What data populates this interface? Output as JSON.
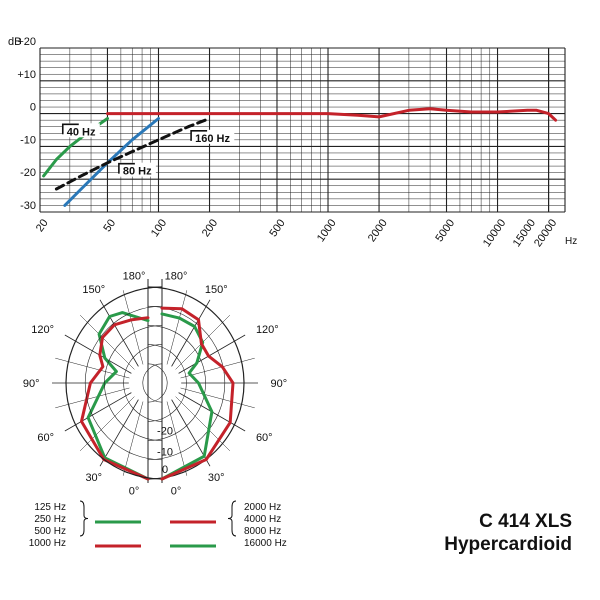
{
  "product": {
    "model": "C 414 XLS",
    "pattern": "Hypercardioid"
  },
  "colors": {
    "green": "#2a9a4a",
    "red": "#c4222a",
    "blue": "#2a78b8",
    "black": "#111111",
    "grid": "#222222"
  },
  "chart_data": [
    {
      "type": "line",
      "x_scale": "log",
      "xlim": [
        20,
        25000
      ],
      "ylim": [
        -30,
        20
      ],
      "grid": true,
      "ylabel": "dB",
      "xlabel": "Hz",
      "y_ticks": [
        {
          "value": 20,
          "label": "+20"
        },
        {
          "value": 10,
          "label": "+10"
        },
        {
          "value": 0,
          "label": "0"
        },
        {
          "value": -10,
          "label": "-10"
        },
        {
          "value": -20,
          "label": "-20"
        },
        {
          "value": -30,
          "label": "-30"
        }
      ],
      "x_ticks": [
        {
          "value": 20,
          "label": "20"
        },
        {
          "value": 50,
          "label": "50"
        },
        {
          "value": 100,
          "label": "100"
        },
        {
          "value": 200,
          "label": "200"
        },
        {
          "value": 500,
          "label": "500"
        },
        {
          "value": 1000,
          "label": "1000"
        },
        {
          "value": 2000,
          "label": "2000"
        },
        {
          "value": 5000,
          "label": "5000"
        },
        {
          "value": 10000,
          "label": "10000"
        },
        {
          "value": 15000,
          "label": "15000"
        },
        {
          "value": 20000,
          "label": "20000"
        }
      ],
      "series": [
        {
          "color": "red",
          "dash": false,
          "x": [
            50,
            100,
            200,
            500,
            1000,
            1500,
            2000,
            3000,
            4000,
            5000,
            7000,
            10000,
            15000,
            17000,
            20000,
            22000
          ],
          "y": [
            0,
            0,
            0,
            0,
            0,
            -0.5,
            -1,
            1,
            1.5,
            1,
            0.5,
            0.5,
            1,
            1,
            0,
            -2
          ]
        },
        {
          "color": "green",
          "dash": false,
          "x": [
            21,
            25,
            30,
            40,
            50
          ],
          "y": [
            -19,
            -14,
            -10,
            -5,
            -1.5
          ]
        },
        {
          "color": "blue",
          "dash": false,
          "x": [
            28,
            35,
            50,
            70,
            100
          ],
          "y": [
            -28,
            -23,
            -15,
            -8,
            -1.5
          ]
        },
        {
          "color": "black",
          "dash": true,
          "x": [
            25,
            35,
            50,
            100,
            150,
            200
          ],
          "y": [
            -23,
            -19,
            -15,
            -8,
            -4,
            -1.5
          ]
        }
      ],
      "annotations": [
        {
          "text": "40 Hz",
          "x": 28,
          "y": -6
        },
        {
          "text": "80 Hz",
          "x": 60,
          "y": -18
        },
        {
          "text": "160 Hz",
          "x": 160,
          "y": -8
        }
      ]
    },
    {
      "type": "polar",
      "r_ticks": [
        {
          "value": -20,
          "label": "-20"
        },
        {
          "value": -10,
          "label": "-10"
        },
        {
          "value": 0,
          "label": "0"
        }
      ],
      "angle_labels": [
        "0°",
        "30°",
        "60°",
        "90°",
        "120°",
        "150°",
        "180°"
      ],
      "left_series": [
        {
          "color": "green",
          "angle": [
            0,
            30,
            60,
            90,
            110,
            120,
            135,
            150,
            160,
            180
          ],
          "r": [
            1.0,
            0.9,
            0.72,
            0.45,
            0.35,
            0.52,
            0.72,
            0.8,
            0.78,
            0.65
          ]
        },
        {
          "color": "red",
          "angle": [
            0,
            30,
            60,
            90,
            110,
            120,
            135,
            150,
            165,
            180
          ],
          "r": [
            1.0,
            0.92,
            0.8,
            0.6,
            0.5,
            0.58,
            0.67,
            0.7,
            0.68,
            0.68
          ]
        }
      ],
      "right_series": [
        {
          "color": "green",
          "angle": [
            0,
            30,
            60,
            90,
            110,
            120,
            135,
            150,
            165,
            180
          ],
          "r": [
            1.0,
            0.88,
            0.6,
            0.38,
            0.3,
            0.42,
            0.6,
            0.68,
            0.7,
            0.72
          ]
        },
        {
          "color": "red",
          "angle": [
            0,
            30,
            60,
            90,
            105,
            120,
            135,
            150,
            165,
            180
          ],
          "r": [
            1.0,
            0.92,
            0.82,
            0.74,
            0.65,
            0.56,
            0.58,
            0.76,
            0.8,
            0.78
          ]
        }
      ]
    }
  ],
  "legend": {
    "left_items": [
      {
        "labels": [
          "125 Hz",
          "250 Hz",
          "500 Hz"
        ],
        "color": "green",
        "grouped": true
      },
      {
        "labels": [
          "1000 Hz"
        ],
        "color": "red",
        "grouped": false
      }
    ],
    "right_items": [
      {
        "labels": [
          "2000 Hz",
          "4000 Hz",
          "8000 Hz"
        ],
        "color": "red",
        "grouped": true
      },
      {
        "labels": [
          "16000 Hz"
        ],
        "color": "green",
        "grouped": false
      }
    ]
  }
}
